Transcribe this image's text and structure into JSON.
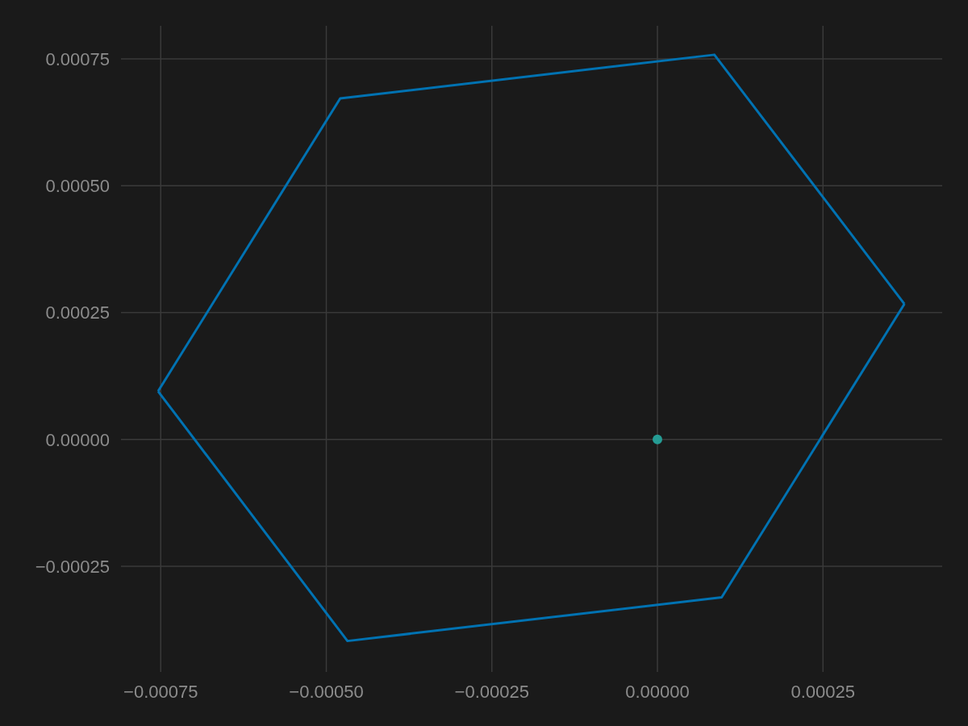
{
  "chart_data": {
    "type": "line",
    "grid": true,
    "series": [
      {
        "type": "line",
        "color": "#0072b2",
        "marker": "none",
        "x": [
          -0.000754,
          -0.000479,
          8.6e-05,
          0.000373
        ],
        "values": [
          9.5e-05,
          0.000672,
          0.000758,
          0.000267
        ]
      },
      {
        "color": "#0072b2",
        "marker": "none",
        "x": [
          -0.000754,
          -0.000468,
          9.7e-05,
          0.000373
        ],
        "values": [
          9.5e-05,
          -0.000397,
          -0.000311,
          0.000267
        ]
      },
      {
        "type": "scatter",
        "color": "#259c94",
        "marker": "circle",
        "x": [
          0
        ],
        "values": [
          0
        ]
      }
    ],
    "xlim": [
      -0.00081,
      0.00043
    ],
    "xticks": [
      {
        "value": -0.00075,
        "label": "−0.00075"
      },
      {
        "value": -0.0005,
        "label": "−0.00050"
      },
      {
        "value": -0.00025,
        "label": "−0.00025"
      },
      {
        "value": 0,
        "label": "0.00000"
      },
      {
        "value": 0.00025,
        "label": "0.00025"
      }
    ],
    "ylim": [
      -0.000458,
      0.000815
    ],
    "yticks": [
      {
        "value": -0.00025,
        "label": "−0.00025"
      },
      {
        "value": 0,
        "label": "0.00000"
      },
      {
        "value": 0.00025,
        "label": "0.00025"
      },
      {
        "value": 0.0005,
        "label": "0.00050"
      },
      {
        "value": 0.00075,
        "label": "0.00075"
      }
    ]
  }
}
